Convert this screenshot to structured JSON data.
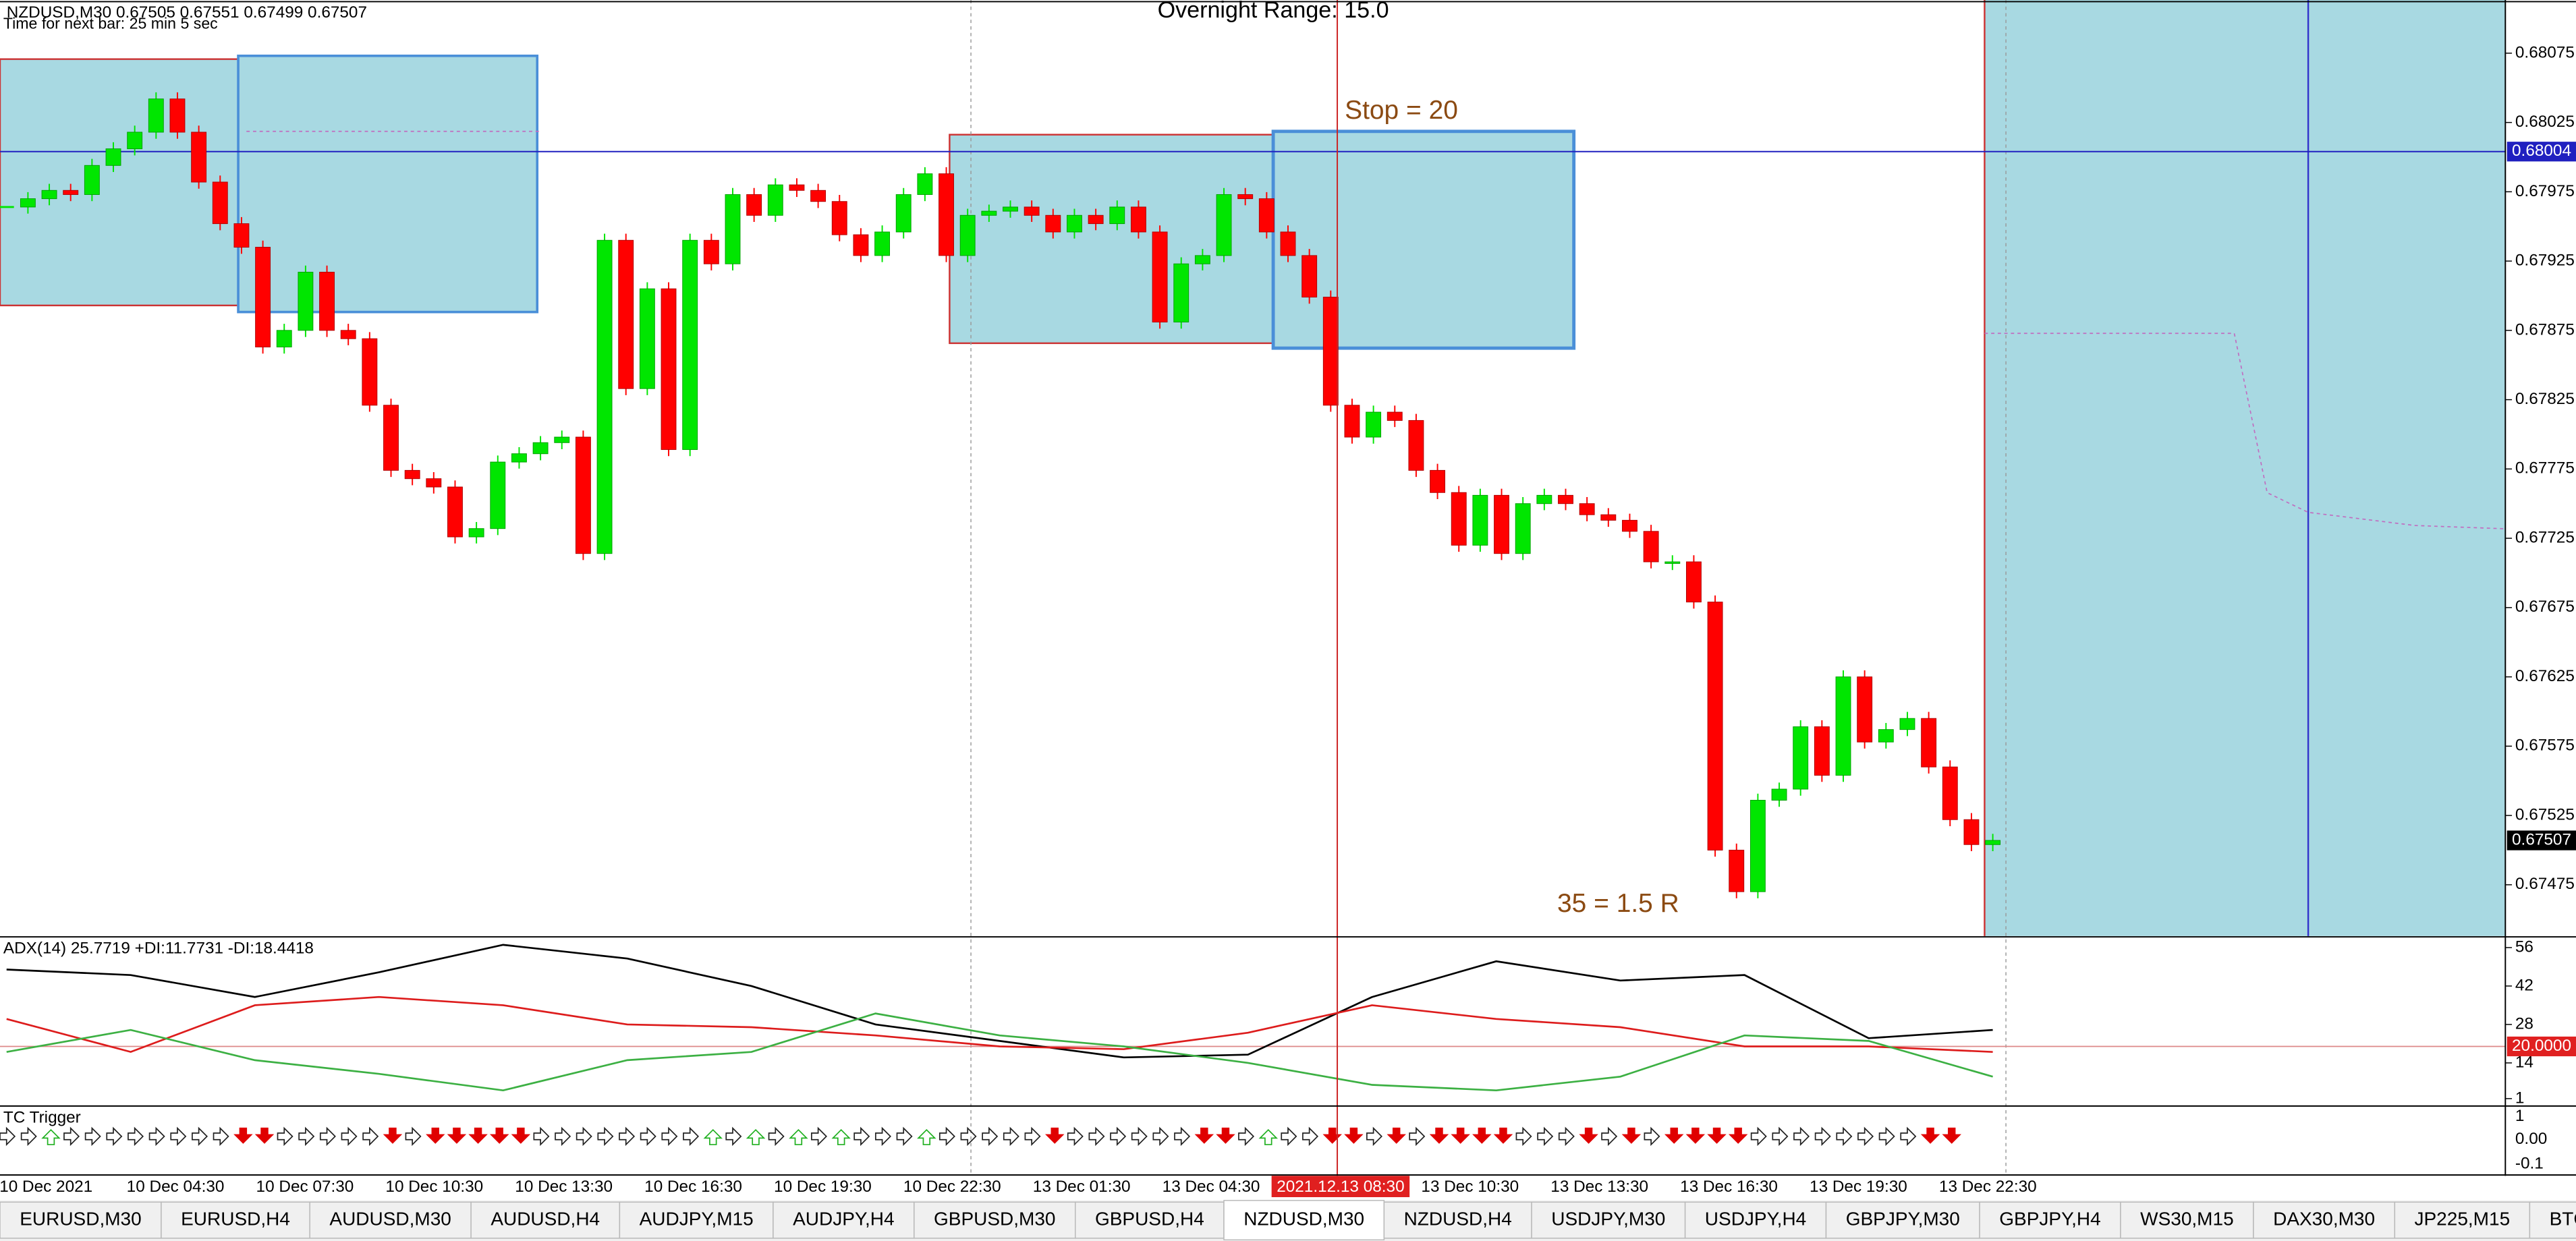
{
  "header": {
    "title": "NZDUSD,M30  0.67505 0.67551 0.67499 0.67507",
    "timer": "Time for next bar: 25 min 5 sec"
  },
  "annotations": {
    "range": "Overnight Range: 15.0",
    "stop": "Stop = 20",
    "target": "35 = 1.5 R"
  },
  "chart_data": [
    {
      "type": "candlestick",
      "closes": [
        0.67964,
        0.6797,
        0.67976,
        0.67973,
        0.67994,
        0.68006,
        0.68018,
        0.68042,
        0.68018,
        0.67982,
        0.67952,
        0.67935,
        0.67863,
        0.67875,
        0.67917,
        0.67875,
        0.67869,
        0.67821,
        0.67774,
        0.67768,
        0.67762,
        0.67726,
        0.67732,
        0.6778,
        0.67786,
        0.67794,
        0.67798,
        0.67714,
        0.6794,
        0.67833,
        0.67905,
        0.67789,
        0.6794,
        0.67923,
        0.67973,
        0.67958,
        0.6798,
        0.67976,
        0.67968,
        0.67944,
        0.67929,
        0.67946,
        0.67973,
        0.67988,
        0.67929,
        0.67958,
        0.67961,
        0.67964,
        0.67958,
        0.67946,
        0.67958,
        0.67952,
        0.67964,
        0.67946,
        0.67881,
        0.67923,
        0.67929,
        0.67973,
        0.6797,
        0.67946,
        0.67929,
        0.67899,
        0.67821,
        0.67798,
        0.67816,
        0.6781,
        0.67774,
        0.67758,
        0.6772,
        0.67756,
        0.67714,
        0.6775,
        0.67756,
        0.6775,
        0.67742,
        0.67738,
        0.6773,
        0.67708,
        0.67708,
        0.67679,
        0.675,
        0.6747,
        0.67536,
        0.67544,
        0.67589,
        0.67554,
        0.67625,
        0.67578,
        0.67587,
        0.67595,
        0.6756,
        0.67522,
        0.67504,
        0.67507
      ],
      "bull_color": "#00e600",
      "bear_color": "#ff0000",
      "ylim": [
        0.67438,
        0.68111
      ],
      "yticks": [
        0.68075,
        0.68025,
        0.67975,
        0.67925,
        0.67875,
        0.67825,
        0.67775,
        0.67725,
        0.67675,
        0.67625,
        0.67575,
        0.67525,
        0.67475
      ],
      "price_lines": [
        {
          "value": 0.68004,
          "color": "#2020c0"
        },
        {
          "value": 0.67507,
          "color": "#000000"
        }
      ]
    },
    {
      "type": "line",
      "title": "ADX(14) 25.7719 +DI:11.7731 -DI:18.4418",
      "series": [
        {
          "name": "ADX",
          "color": "#000000",
          "values": [
            48,
            46,
            38,
            47,
            57,
            52,
            42,
            28,
            22,
            16,
            17,
            38,
            51,
            44,
            46,
            23,
            26
          ]
        },
        {
          "name": "-DI",
          "color": "#dd1c1c",
          "values": [
            30,
            18,
            35,
            38,
            35,
            28,
            27,
            24,
            20,
            19,
            25,
            35,
            30,
            27,
            20,
            20,
            18
          ]
        },
        {
          "name": "+DI",
          "color": "#3cb043",
          "values": [
            18,
            26,
            15,
            10,
            4,
            15,
            18,
            32,
            24,
            20,
            14,
            6,
            4,
            9,
            24,
            22,
            9
          ]
        }
      ],
      "ylim": [
        -1.4,
        59
      ],
      "yticks": [
        56,
        42,
        28,
        14,
        1
      ],
      "level": {
        "value": 20,
        "label": "20.0000"
      }
    },
    {
      "type": "arrows",
      "title": "TC Trigger",
      "values": [
        0,
        0,
        1,
        0,
        0,
        0,
        0,
        0,
        0,
        0,
        0,
        -1,
        -1,
        0,
        0,
        0,
        0,
        0,
        -1,
        0,
        -1,
        -1,
        -1,
        -1,
        -1,
        0,
        0,
        0,
        0,
        0,
        0,
        0,
        0,
        1,
        0,
        1,
        0,
        1,
        0,
        1,
        0,
        0,
        0,
        1,
        0,
        0,
        0,
        0,
        0,
        -1,
        0,
        0,
        0,
        0,
        0,
        0,
        -1,
        -1,
        0,
        1,
        0,
        0,
        -1,
        -1,
        0,
        -1,
        0,
        -1,
        -1,
        -1,
        -1,
        0,
        0,
        0,
        -1,
        0,
        -1,
        0,
        -1,
        -1,
        -1,
        -1,
        0,
        0,
        0,
        0,
        0,
        0,
        0,
        0,
        -1,
        -1
      ],
      "yticks": [
        1,
        {
          "value": 0,
          "label": "0.00"
        },
        -0.1
      ]
    }
  ],
  "time_labels": [
    "10 Dec 2021",
    "10 Dec 04:30",
    "10 Dec 07:30",
    "10 Dec 10:30",
    "10 Dec 13:30",
    "10 Dec 16:30",
    "10 Dec 19:30",
    "10 Dec 22:30",
    "13 Dec 01:30",
    "13 Dec 04:30",
    null,
    "13 Dec 10:30",
    "13 Dec 13:30",
    "13 Dec 16:30",
    "13 Dec 19:30",
    "13 Dec 22:30"
  ],
  "cursor_time": "2021.12.13 08:30",
  "tabs": [
    "EURUSD,M30",
    "EURUSD,H4",
    "AUDUSD,M30",
    "AUDUSD,H4",
    "AUDJPY,M15",
    "AUDJPY,H4",
    "GBPUSD,M30",
    "GBPUSD,H4",
    "NZDUSD,M30",
    "NZDUSD,H4",
    "USDJPY,M30",
    "USDJPY,H4",
    "GBPJPY,M30",
    "GBPJPY,H4",
    "WS30,M15",
    "DAX30,M30",
    "JP225,M15",
    "BTCU"
  ],
  "active_tab": "NZDUSD,M30"
}
